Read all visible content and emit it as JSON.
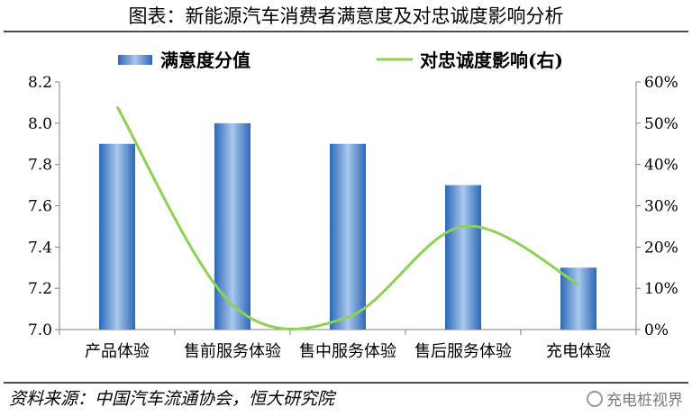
{
  "title": "图表：新能源汽车消费者满意度及对忠诚度影响分析",
  "source": "资料来源：中国汽车流通协会，恒大研究院",
  "watermark": "充电桩视界",
  "watermark_icon": "wechat-icon",
  "chart_data": {
    "type": "bar",
    "categories": [
      "产品体验",
      "售前服务体验",
      "售中服务体验",
      "售后服务体验",
      "充电体验"
    ],
    "series": [
      {
        "name": "满意度分值",
        "type": "bar",
        "axis": "left",
        "values": [
          7.9,
          8.0,
          7.9,
          7.7,
          7.3
        ],
        "color": "#3a78c9"
      },
      {
        "name": "对忠诚度影响(右)",
        "type": "line",
        "axis": "right",
        "values": [
          54,
          6,
          3,
          25,
          11
        ],
        "color": "#8fd150"
      }
    ],
    "y_left": {
      "min": 7.0,
      "max": 8.2,
      "ticks": [
        "7.0",
        "7.2",
        "7.4",
        "7.6",
        "7.8",
        "8.0",
        "8.2"
      ]
    },
    "y_right": {
      "min": 0,
      "max": 60,
      "ticks": [
        "0%",
        "10%",
        "20%",
        "30%",
        "40%",
        "50%",
        "60%"
      ]
    },
    "legend_position": "top",
    "grid": false
  }
}
